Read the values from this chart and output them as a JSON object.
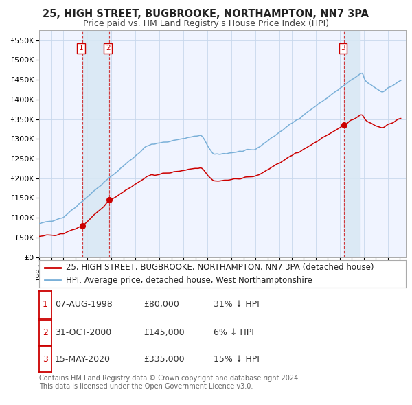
{
  "title": "25, HIGH STREET, BUGBROOKE, NORTHAMPTON, NN7 3PA",
  "subtitle": "Price paid vs. HM Land Registry's House Price Index (HPI)",
  "ylim": [
    0,
    575000
  ],
  "yticks": [
    0,
    50000,
    100000,
    150000,
    200000,
    250000,
    300000,
    350000,
    400000,
    450000,
    500000,
    550000
  ],
  "ytick_labels": [
    "£0",
    "£50K",
    "£100K",
    "£150K",
    "£200K",
    "£250K",
    "£300K",
    "£350K",
    "£400K",
    "£450K",
    "£500K",
    "£550K"
  ],
  "xlim_start": 1995.0,
  "xlim_end": 2025.5,
  "background_color": "#ffffff",
  "plot_bg_color": "#f0f4ff",
  "grid_color": "#c8d8ec",
  "sale_color": "#cc0000",
  "hpi_color": "#7ab0d8",
  "sale_label": "25, HIGH STREET, BUGBROOKE, NORTHAMPTON, NN7 3PA (detached house)",
  "hpi_label": "HPI: Average price, detached house, West Northamptonshire",
  "transactions": [
    {
      "date_year": 1998.6,
      "price": 80000,
      "label": "1",
      "note": "07-AUG-1998",
      "amount": "£80,000",
      "hpi_rel": "31% ↓ HPI"
    },
    {
      "date_year": 2000.83,
      "price": 145000,
      "label": "2",
      "note": "31-OCT-2000",
      "amount": "£145,000",
      "hpi_rel": "6% ↓ HPI"
    },
    {
      "date_year": 2020.37,
      "price": 335000,
      "label": "3",
      "note": "15-MAY-2020",
      "amount": "£335,000",
      "hpi_rel": "15% ↓ HPI"
    }
  ],
  "footer": "Contains HM Land Registry data © Crown copyright and database right 2024.\nThis data is licensed under the Open Government Licence v3.0.",
  "title_fontsize": 10.5,
  "subtitle_fontsize": 9,
  "tick_fontsize": 8,
  "legend_fontsize": 8.5,
  "table_fontsize": 9
}
